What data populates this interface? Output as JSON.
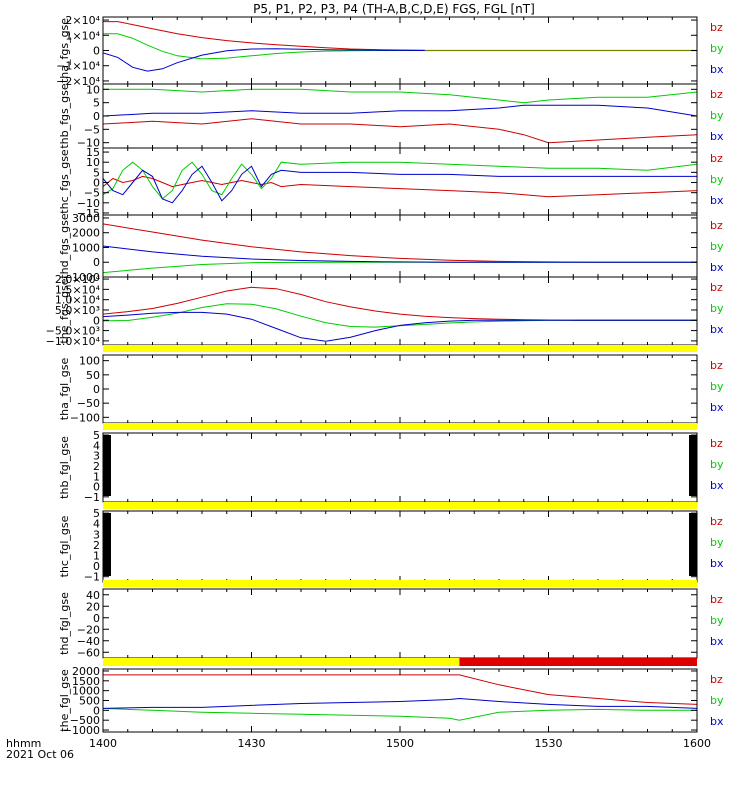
{
  "title": "P5, P1, P2, P3, P4 (TH-A,B,C,D,E) FGS, FGL [nT]",
  "x_axis": {
    "label": "hhmm",
    "date": "2021 Oct 06",
    "tick_labels": [
      "1400",
      "1430",
      "1500",
      "1530",
      "1600"
    ]
  },
  "colors": {
    "bz": "#cc0000",
    "by": "#00cc00",
    "bx": "#0000cc",
    "status_bar": "#ffff00",
    "status_bar_alt": "#dd0000"
  },
  "legend": [
    "bz",
    "by",
    "bx"
  ],
  "chart_data": [
    {
      "type": "line",
      "ylabel": "tha_fgs_gse",
      "ytick_labels": [
        "2×10⁴",
        "1×10⁴",
        "0",
        "−1×10⁴",
        "−2×10⁴"
      ],
      "ytick_values": [
        20000,
        10000,
        0,
        -10000,
        -20000
      ],
      "ylim": [
        -22000,
        22000
      ],
      "x": [
        "14:00",
        "14:03",
        "14:06",
        "14:09",
        "14:12",
        "14:15",
        "14:20",
        "14:25",
        "14:30",
        "14:35",
        "14:40",
        "14:45",
        "14:50",
        "14:55",
        "15:00",
        "15:05"
      ],
      "series": [
        {
          "name": "bz",
          "values": [
            19000,
            19000,
            17000,
            15000,
            13000,
            11000,
            8500,
            6500,
            5000,
            3800,
            2800,
            1800,
            1000,
            600,
            300,
            100
          ]
        },
        {
          "name": "by",
          "values": [
            11000,
            11000,
            8000,
            3500,
            -500,
            -3500,
            -5500,
            -5000,
            -3500,
            -2000,
            -1000,
            -400,
            -100,
            0,
            0,
            0
          ]
        },
        {
          "name": "bx",
          "values": [
            -1500,
            -4500,
            -11000,
            -13500,
            -12000,
            -8000,
            -3000,
            -200,
            1000,
            1100,
            800,
            500,
            300,
            150,
            50,
            0
          ]
        }
      ],
      "flat_value_after": "15:05"
    },
    {
      "type": "line",
      "ylabel": "thb_fgs_gse",
      "ytick_labels": [
        "10",
        "5",
        "0",
        "−5",
        "−10"
      ],
      "ytick_values": [
        10,
        5,
        0,
        -5,
        -10
      ],
      "ylim": [
        -12,
        12
      ],
      "x": [
        "14:00",
        "14:10",
        "14:20",
        "14:30",
        "14:40",
        "14:50",
        "15:00",
        "15:10",
        "15:20",
        "15:25",
        "15:30",
        "15:40",
        "15:50",
        "16:00"
      ],
      "series": [
        {
          "name": "bz",
          "values": [
            -3,
            -2,
            -3,
            -1,
            -3,
            -3,
            -4,
            -3,
            -5,
            -7,
            -10,
            -9,
            -8,
            -7
          ]
        },
        {
          "name": "by",
          "values": [
            10,
            10,
            9,
            10,
            10,
            9,
            9,
            8,
            6,
            5,
            6,
            7,
            7,
            9
          ]
        },
        {
          "name": "bx",
          "values": [
            0,
            1,
            1,
            2,
            1,
            1,
            2,
            2,
            3,
            4,
            4,
            4,
            3,
            0
          ]
        }
      ]
    },
    {
      "type": "line",
      "ylabel": "thc_fgs_gse",
      "ytick_labels": [
        "15",
        "10",
        "5",
        "0",
        "−5",
        "−10",
        "−15"
      ],
      "ytick_values": [
        15,
        10,
        5,
        0,
        -5,
        -10,
        -15
      ],
      "ylim": [
        -16,
        17
      ],
      "x": [
        "14:00",
        "14:02",
        "14:04",
        "14:06",
        "14:08",
        "14:10",
        "14:12",
        "14:14",
        "14:16",
        "14:18",
        "14:20",
        "14:22",
        "14:24",
        "14:26",
        "14:28",
        "14:30",
        "14:32",
        "14:34",
        "14:36",
        "14:40",
        "14:50",
        "15:00",
        "15:10",
        "15:20",
        "15:30",
        "15:40",
        "15:50",
        "16:00"
      ],
      "series": [
        {
          "name": "bz",
          "values": [
            -2,
            2,
            0,
            1,
            3,
            2,
            0,
            -2,
            -1,
            0,
            1,
            0,
            -1,
            0,
            1,
            0,
            -1,
            0,
            -2,
            -1,
            -2,
            -3,
            -4,
            -5,
            -7,
            -6,
            -5,
            -4
          ]
        },
        {
          "name": "by",
          "values": [
            -6,
            -3,
            6,
            10,
            6,
            -2,
            -8,
            -4,
            6,
            10,
            4,
            -4,
            -6,
            2,
            9,
            4,
            -3,
            2,
            10,
            9,
            10,
            10,
            9,
            8,
            7,
            7,
            6,
            9
          ]
        },
        {
          "name": "bx",
          "values": [
            2,
            -4,
            -6,
            0,
            6,
            3,
            -8,
            -10,
            -4,
            4,
            8,
            0,
            -9,
            -4,
            4,
            8,
            -2,
            4,
            6,
            5,
            5,
            4,
            4,
            3,
            3,
            3,
            3,
            3
          ]
        }
      ]
    },
    {
      "type": "line",
      "ylabel": "thd_fgs_gse",
      "ytick_labels": [
        "3000",
        "2000",
        "1000",
        "0",
        "−1000"
      ],
      "ytick_values": [
        3000,
        2000,
        1000,
        0,
        -1000
      ],
      "ylim": [
        -1000,
        3200
      ],
      "x": [
        "14:00",
        "14:10",
        "14:20",
        "14:30",
        "14:40",
        "14:50",
        "15:00",
        "15:10",
        "15:20",
        "15:30",
        "15:40",
        "15:50",
        "16:00"
      ],
      "series": [
        {
          "name": "bz",
          "values": [
            2600,
            2050,
            1500,
            1050,
            700,
            450,
            260,
            130,
            60,
            20,
            0,
            0,
            0
          ]
        },
        {
          "name": "by",
          "values": [
            -700,
            -400,
            -150,
            -30,
            -10,
            0,
            0,
            0,
            0,
            0,
            0,
            0,
            0
          ]
        },
        {
          "name": "bx",
          "values": [
            1100,
            700,
            400,
            220,
            120,
            60,
            20,
            0,
            0,
            0,
            0,
            0,
            0
          ]
        }
      ]
    },
    {
      "type": "line",
      "ylabel": "the_fgs_gse",
      "ytick_labels": [
        "2.0×10⁴",
        "1.5×10⁴",
        "1.0×10⁴",
        "5.0×10³",
        "0",
        "−5.0×10³",
        "−1.0×10⁴"
      ],
      "ytick_values": [
        20000,
        15000,
        10000,
        5000,
        0,
        -5000,
        -10000
      ],
      "ylim": [
        -12000,
        21000
      ],
      "x": [
        "14:00",
        "14:05",
        "14:10",
        "14:15",
        "14:20",
        "14:25",
        "14:30",
        "14:35",
        "14:40",
        "14:45",
        "14:50",
        "14:55",
        "15:00",
        "15:05",
        "15:10",
        "15:15",
        "15:20",
        "15:25",
        "15:30",
        "15:35",
        "15:40",
        "15:50",
        "16:00"
      ],
      "series": [
        {
          "name": "bz",
          "values": [
            3000,
            4200,
            5700,
            8200,
            11200,
            14200,
            16000,
            15300,
            12500,
            9000,
            6500,
            4500,
            3000,
            2000,
            1300,
            800,
            500,
            300,
            150,
            0,
            0,
            0,
            0
          ]
        },
        {
          "name": "by",
          "values": [
            -300,
            -100,
            1500,
            3500,
            6200,
            8000,
            7800,
            5500,
            2000,
            -1200,
            -3000,
            -3300,
            -2700,
            -2000,
            -1300,
            -800,
            -500,
            -200,
            0,
            0,
            0,
            0,
            0
          ]
        },
        {
          "name": "bx",
          "values": [
            1800,
            2500,
            3400,
            3800,
            3800,
            3000,
            500,
            -4000,
            -8500,
            -10200,
            -8200,
            -5000,
            -2500,
            -1200,
            -400,
            0,
            0,
            0,
            0,
            0,
            0,
            0,
            0
          ]
        }
      ],
      "flat_value_after": "15:35"
    },
    {
      "type": "line",
      "ylabel": "tha_fgl_gse",
      "ytick_labels": [
        "100",
        "50",
        "0",
        "−50",
        "−100"
      ],
      "ytick_values": [
        100,
        50,
        0,
        -50,
        -100
      ],
      "ylim": [
        -120,
        120
      ],
      "series": [],
      "status_bar": "yellow"
    },
    {
      "type": "line",
      "ylabel": "thb_fgl_gse",
      "ytick_labels": [
        "5",
        "4",
        "3",
        "2",
        "1",
        "0",
        "−1"
      ],
      "ytick_values": [
        5,
        4,
        3,
        2,
        1,
        0,
        -1
      ],
      "ylim": [
        -1.5,
        5.2
      ],
      "series": [],
      "status_bar": "yellow"
    },
    {
      "type": "line",
      "ylabel": "thc_fgl_gse",
      "ytick_labels": [
        "5",
        "4",
        "3",
        "2",
        "1",
        "0",
        "−1"
      ],
      "ytick_values": [
        5,
        4,
        3,
        2,
        1,
        0,
        -1
      ],
      "ylim": [
        -1.5,
        5.2
      ],
      "series": [],
      "status_bar": "yellow"
    },
    {
      "type": "line",
      "ylabel": "thd_fgl_gse",
      "ytick_labels": [
        "40",
        "20",
        "0",
        "−20",
        "−40",
        "−60"
      ],
      "ytick_values": [
        40,
        20,
        0,
        -20,
        -40,
        -60
      ],
      "ylim": [
        -70,
        50
      ],
      "series": [],
      "status_bar": "yellow"
    },
    {
      "type": "line",
      "ylabel": "the_fgl_gse",
      "ytick_labels": [
        "2000",
        "1500",
        "1000",
        "500",
        "0",
        "−500",
        "−1000"
      ],
      "ytick_values": [
        2000,
        1500,
        1000,
        500,
        0,
        -500,
        -1000
      ],
      "ylim": [
        -1100,
        2100
      ],
      "x": [
        "14:00",
        "14:10",
        "14:20",
        "14:30",
        "14:40",
        "14:50",
        "15:00",
        "15:10",
        "15:12",
        "15:20",
        "15:30",
        "15:40",
        "15:50",
        "16:00"
      ],
      "series": [
        {
          "name": "bz",
          "values": [
            1800,
            1800,
            1800,
            1800,
            1800,
            1800,
            1800,
            1800,
            1800,
            1300,
            800,
            600,
            400,
            300
          ]
        },
        {
          "name": "by",
          "values": [
            100,
            0,
            -100,
            -150,
            -200,
            -250,
            -300,
            -400,
            -500,
            -100,
            0,
            50,
            0,
            0
          ]
        },
        {
          "name": "bx",
          "values": [
            100,
            150,
            150,
            250,
            350,
            400,
            450,
            550,
            600,
            450,
            300,
            200,
            200,
            100
          ]
        }
      ],
      "status_bar": "yellow-then-red",
      "status_bar_switch": "15:12"
    }
  ]
}
